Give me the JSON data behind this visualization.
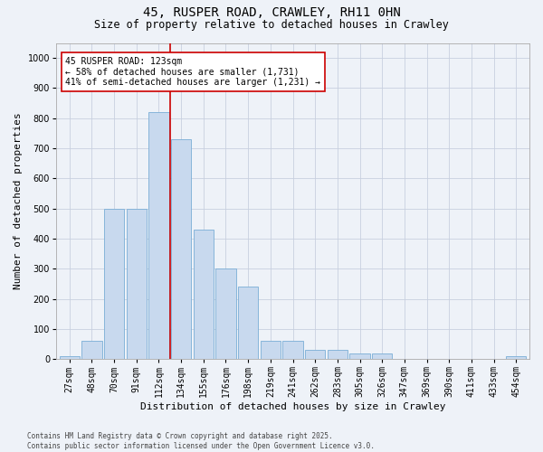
{
  "title": "45, RUSPER ROAD, CRAWLEY, RH11 0HN",
  "subtitle": "Size of property relative to detached houses in Crawley",
  "xlabel": "Distribution of detached houses by size in Crawley",
  "ylabel": "Number of detached properties",
  "categories": [
    "27sqm",
    "48sqm",
    "70sqm",
    "91sqm",
    "112sqm",
    "134sqm",
    "155sqm",
    "176sqm",
    "198sqm",
    "219sqm",
    "241sqm",
    "262sqm",
    "283sqm",
    "305sqm",
    "326sqm",
    "347sqm",
    "369sqm",
    "390sqm",
    "411sqm",
    "433sqm",
    "454sqm"
  ],
  "values": [
    10,
    60,
    500,
    500,
    820,
    730,
    430,
    300,
    240,
    60,
    60,
    30,
    30,
    20,
    20,
    0,
    0,
    0,
    0,
    0,
    10
  ],
  "bar_color": "#c8d9ee",
  "bar_edge_color": "#7aaed6",
  "vline_color": "#cc0000",
  "vline_pos": 4.5,
  "annotation_text": "45 RUSPER ROAD: 123sqm\n← 58% of detached houses are smaller (1,731)\n41% of semi-detached houses are larger (1,231) →",
  "annotation_box_color": "#ffffff",
  "annotation_box_edge": "#cc0000",
  "ylim": [
    0,
    1050
  ],
  "yticks": [
    0,
    100,
    200,
    300,
    400,
    500,
    600,
    700,
    800,
    900,
    1000
  ],
  "background_color": "#eef2f8",
  "grid_color": "#c8d0df",
  "footer": "Contains HM Land Registry data © Crown copyright and database right 2025.\nContains public sector information licensed under the Open Government Licence v3.0.",
  "title_fontsize": 10,
  "subtitle_fontsize": 8.5,
  "tick_fontsize": 7,
  "axis_label_fontsize": 8,
  "annotation_fontsize": 7,
  "footer_fontsize": 5.5
}
